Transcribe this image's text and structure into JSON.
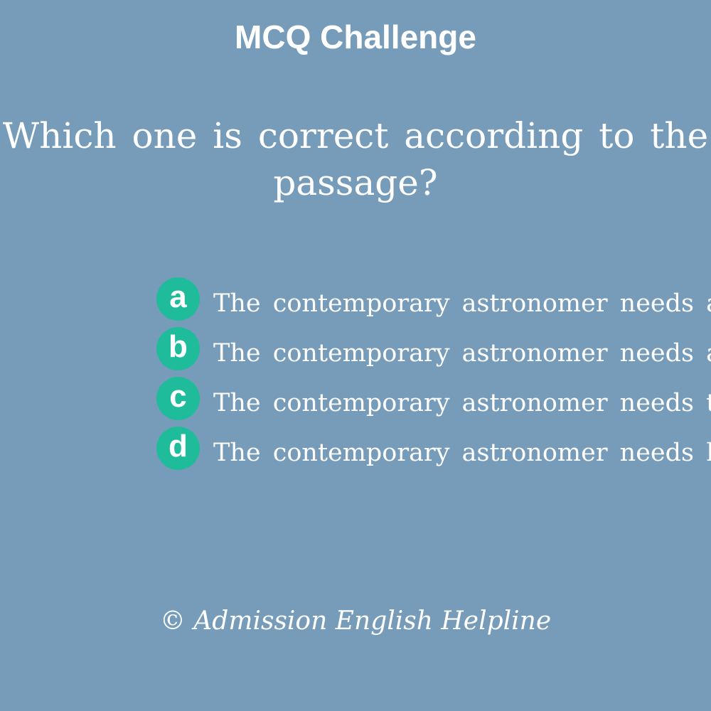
{
  "header": {
    "title": "MCQ Challenge"
  },
  "question": {
    "line1": "Which one is correct according to the",
    "line2": "passage?"
  },
  "options": [
    {
      "letter": "a",
      "text": "The contemporary astronomer needs a te"
    },
    {
      "letter": "b",
      "text": "The contemporary astronomer needs a te"
    },
    {
      "letter": "c",
      "text": "The contemporary astronomer needs to l"
    },
    {
      "letter": "d",
      "text": "The contemporary astronomer needs hav"
    }
  ],
  "footer": {
    "copyright": "© Admission English Helpline"
  },
  "colors": {
    "background": "#769cba",
    "badge": "#1ebc9b",
    "text": "#ffffff"
  }
}
